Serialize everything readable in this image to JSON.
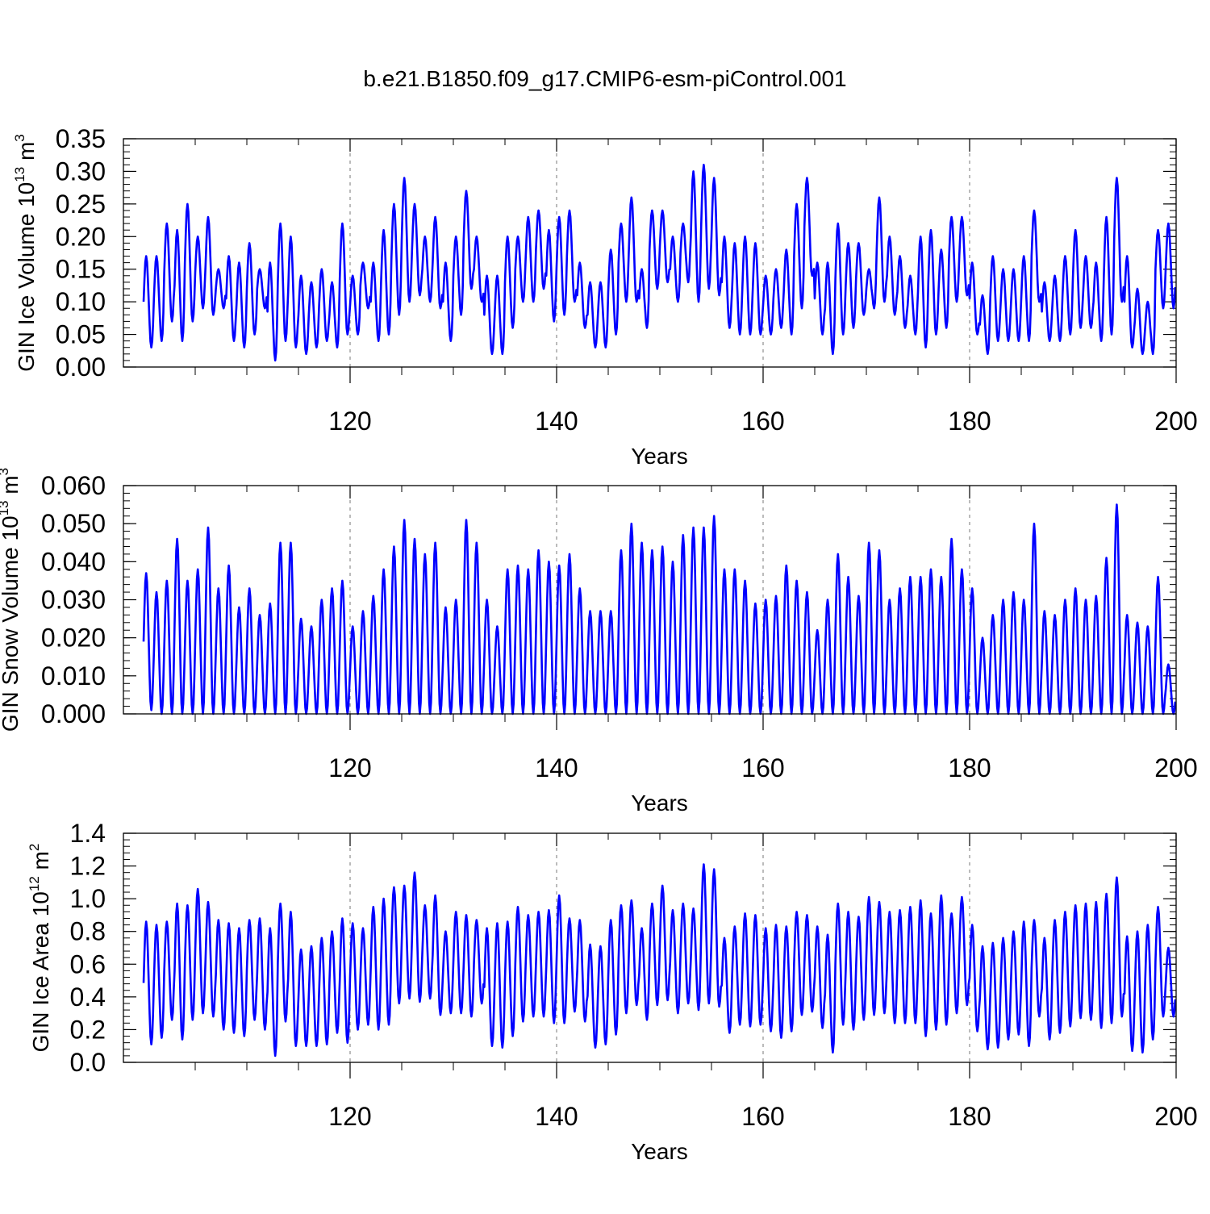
{
  "title": "b.e21.B1850.f09_g17.CMIP6-esm-piControl.001",
  "colors": {
    "series": "#0000ff",
    "axis": "#000000",
    "grid": "#777777"
  },
  "chart_data": [
    {
      "type": "line",
      "ylabel_main": "GIN Ice Volume 10",
      "ylabel_exp1": "13",
      "ylabel_mid": " m",
      "ylabel_exp2": "3",
      "xlabel": "Years",
      "xlim": [
        100,
        200
      ],
      "ylim": [
        0,
        0.35
      ],
      "x_ticks": [
        120,
        140,
        160,
        180,
        200
      ],
      "x_tick_labels": [
        "120",
        "140",
        "160",
        "180",
        "200"
      ],
      "y_ticks": [
        0,
        0.05,
        0.1,
        0.15,
        0.2,
        0.25,
        0.3,
        0.35
      ],
      "y_tick_labels": [
        "0.00",
        "0.05",
        "0.10",
        "0.15",
        "0.20",
        "0.25",
        "0.30",
        "0.35"
      ],
      "grid": "vertical dashed at major x ticks",
      "series": [
        {
          "x": [
            100,
            101,
            102,
            103,
            104,
            105,
            106,
            107,
            108,
            109,
            110,
            111,
            112,
            113,
            114,
            115,
            116,
            117,
            118,
            119,
            120,
            121,
            122,
            123,
            124,
            125,
            126,
            127,
            128,
            129,
            130,
            131,
            132,
            133,
            134,
            135,
            136,
            137,
            138,
            139,
            140,
            141,
            142,
            143,
            144,
            145,
            146,
            147,
            148,
            149,
            150,
            151,
            152,
            153,
            154,
            155,
            156,
            157,
            158,
            159,
            160,
            161,
            162,
            163,
            164,
            165,
            166,
            167,
            168,
            169,
            170,
            171,
            172,
            173,
            174,
            175,
            176,
            177,
            178,
            179,
            180,
            181,
            182,
            183,
            184,
            185,
            186,
            187,
            188,
            189,
            190,
            191,
            192,
            193,
            194,
            195,
            196,
            197,
            198,
            199
          ],
          "max": [
            0.17,
            0.17,
            0.22,
            0.21,
            0.25,
            0.2,
            0.23,
            0.15,
            0.17,
            0.16,
            0.19,
            0.15,
            0.16,
            0.22,
            0.2,
            0.14,
            0.13,
            0.15,
            0.13,
            0.22,
            0.14,
            0.16,
            0.16,
            0.21,
            0.25,
            0.29,
            0.25,
            0.2,
            0.23,
            0.16,
            0.2,
            0.27,
            0.2,
            0.14,
            0.14,
            0.2,
            0.2,
            0.23,
            0.24,
            0.21,
            0.23,
            0.24,
            0.16,
            0.13,
            0.13,
            0.18,
            0.22,
            0.26,
            0.15,
            0.24,
            0.24,
            0.2,
            0.22,
            0.3,
            0.31,
            0.29,
            0.2,
            0.19,
            0.2,
            0.19,
            0.14,
            0.15,
            0.18,
            0.25,
            0.29,
            0.16,
            0.16,
            0.22,
            0.19,
            0.19,
            0.15,
            0.26,
            0.2,
            0.17,
            0.14,
            0.2,
            0.21,
            0.18,
            0.23,
            0.23,
            0.16,
            0.11,
            0.17,
            0.15,
            0.15,
            0.17,
            0.24,
            0.13,
            0.14,
            0.17,
            0.21,
            0.17,
            0.16,
            0.23,
            0.29,
            0.17,
            0.12,
            0.1,
            0.21,
            0.22
          ],
          "min": [
            0.03,
            0.04,
            0.07,
            0.04,
            0.07,
            0.09,
            0.08,
            0.09,
            0.04,
            0.03,
            0.05,
            0.09,
            0.01,
            0.04,
            0.03,
            0.02,
            0.03,
            0.04,
            0.03,
            0.05,
            0.05,
            0.09,
            0.04,
            0.05,
            0.08,
            0.1,
            0.11,
            0.1,
            0.09,
            0.04,
            0.08,
            0.12,
            0.1,
            0.02,
            0.02,
            0.06,
            0.1,
            0.1,
            0.12,
            0.07,
            0.08,
            0.1,
            0.06,
            0.03,
            0.03,
            0.05,
            0.1,
            0.1,
            0.06,
            0.12,
            0.13,
            0.1,
            0.13,
            0.1,
            0.12,
            0.11,
            0.06,
            0.05,
            0.05,
            0.05,
            0.05,
            0.06,
            0.05,
            0.09,
            0.14,
            0.05,
            0.02,
            0.05,
            0.06,
            0.08,
            0.09,
            0.1,
            0.08,
            0.06,
            0.05,
            0.03,
            0.05,
            0.06,
            0.1,
            0.11,
            0.05,
            0.02,
            0.04,
            0.04,
            0.04,
            0.04,
            0.1,
            0.04,
            0.04,
            0.05,
            0.06,
            0.06,
            0.04,
            0.05,
            0.1,
            0.03,
            0.02,
            0.02,
            0.09,
            0.09
          ]
        }
      ]
    },
    {
      "type": "line",
      "ylabel_main": "GIN Snow Volume 10",
      "ylabel_exp1": "13",
      "ylabel_mid": " m",
      "ylabel_exp2": "3",
      "xlabel": "Years",
      "xlim": [
        100,
        200
      ],
      "ylim": [
        0,
        0.06
      ],
      "x_ticks": [
        120,
        140,
        160,
        180,
        200
      ],
      "x_tick_labels": [
        "120",
        "140",
        "160",
        "180",
        "200"
      ],
      "y_ticks": [
        0,
        0.01,
        0.02,
        0.03,
        0.04,
        0.05,
        0.06
      ],
      "y_tick_labels": [
        "0.000",
        "0.010",
        "0.020",
        "0.030",
        "0.040",
        "0.050",
        "0.060"
      ],
      "grid": "vertical dashed at major x ticks",
      "series": [
        {
          "x": [
            100,
            101,
            102,
            103,
            104,
            105,
            106,
            107,
            108,
            109,
            110,
            111,
            112,
            113,
            114,
            115,
            116,
            117,
            118,
            119,
            120,
            121,
            122,
            123,
            124,
            125,
            126,
            127,
            128,
            129,
            130,
            131,
            132,
            133,
            134,
            135,
            136,
            137,
            138,
            139,
            140,
            141,
            142,
            143,
            144,
            145,
            146,
            147,
            148,
            149,
            150,
            151,
            152,
            153,
            154,
            155,
            156,
            157,
            158,
            159,
            160,
            161,
            162,
            163,
            164,
            165,
            166,
            167,
            168,
            169,
            170,
            171,
            172,
            173,
            174,
            175,
            176,
            177,
            178,
            179,
            180,
            181,
            182,
            183,
            184,
            185,
            186,
            187,
            188,
            189,
            190,
            191,
            192,
            193,
            194,
            195,
            196,
            197,
            198,
            199
          ],
          "max": [
            0.037,
            0.032,
            0.035,
            0.046,
            0.035,
            0.038,
            0.049,
            0.033,
            0.039,
            0.028,
            0.033,
            0.026,
            0.029,
            0.045,
            0.045,
            0.025,
            0.023,
            0.03,
            0.033,
            0.035,
            0.023,
            0.027,
            0.031,
            0.038,
            0.044,
            0.051,
            0.046,
            0.042,
            0.045,
            0.028,
            0.03,
            0.051,
            0.045,
            0.03,
            0.023,
            0.038,
            0.039,
            0.038,
            0.043,
            0.04,
            0.039,
            0.042,
            0.033,
            0.027,
            0.027,
            0.027,
            0.043,
            0.05,
            0.045,
            0.043,
            0.044,
            0.04,
            0.047,
            0.049,
            0.049,
            0.052,
            0.038,
            0.038,
            0.035,
            0.029,
            0.03,
            0.031,
            0.039,
            0.035,
            0.032,
            0.022,
            0.03,
            0.042,
            0.036,
            0.031,
            0.045,
            0.043,
            0.03,
            0.033,
            0.036,
            0.036,
            0.038,
            0.036,
            0.046,
            0.038,
            0.033,
            0.02,
            0.026,
            0.03,
            0.032,
            0.03,
            0.05,
            0.027,
            0.026,
            0.03,
            0.033,
            0.03,
            0.031,
            0.041,
            0.055,
            0.026,
            0.024,
            0.023,
            0.036,
            0.013
          ],
          "min": [
            0.001,
            0.0,
            0.0,
            0.0,
            0.0,
            0.0,
            0.0,
            0.0,
            0.0,
            0.0,
            0.0,
            0.0,
            0.0,
            0.0,
            0.0,
            0.0,
            0.0,
            0.0,
            0.0,
            0.0,
            0.0,
            0.0,
            0.0,
            0.0,
            0.0,
            0.0,
            0.0,
            0.0,
            0.0,
            0.0,
            0.0,
            0.0,
            0.0,
            0.0,
            0.0,
            0.0,
            0.0,
            0.0,
            0.0,
            0.0,
            0.0,
            0.0,
            0.0,
            0.0,
            0.0,
            0.0,
            0.0,
            0.0,
            0.0,
            0.0,
            0.0,
            0.0,
            0.0,
            0.0,
            0.0,
            0.0,
            0.0,
            0.0,
            0.0,
            0.0,
            0.0,
            0.0,
            0.0,
            0.0,
            0.0,
            0.0,
            0.0,
            0.0,
            0.0,
            0.0,
            0.0,
            0.0,
            0.0,
            0.0,
            0.0,
            0.0,
            0.0,
            0.0,
            0.0,
            0.0,
            0.0,
            0.0,
            0.0,
            0.0,
            0.0,
            0.0,
            0.0,
            0.0,
            0.0,
            0.0,
            0.0,
            0.0,
            0.0,
            0.0,
            0.0,
            0.0,
            0.0,
            0.0,
            0.0,
            0.0
          ]
        }
      ]
    },
    {
      "type": "line",
      "ylabel_main": "GIN Ice Area 10",
      "ylabel_exp1": "12",
      "ylabel_mid": " m",
      "ylabel_exp2": "2",
      "xlabel": "Years",
      "xlim": [
        100,
        200
      ],
      "ylim": [
        0,
        1.4
      ],
      "x_ticks": [
        120,
        140,
        160,
        180,
        200
      ],
      "x_tick_labels": [
        "120",
        "140",
        "160",
        "180",
        "200"
      ],
      "y_ticks": [
        0,
        0.2,
        0.4,
        0.6,
        0.8,
        1.0,
        1.2,
        1.4
      ],
      "y_tick_labels": [
        "0.0",
        "0.2",
        "0.4",
        "0.6",
        "0.8",
        "1.0",
        "1.2",
        "1.4"
      ],
      "grid": "vertical dashed at major x ticks",
      "series": [
        {
          "x": [
            100,
            101,
            102,
            103,
            104,
            105,
            106,
            107,
            108,
            109,
            110,
            111,
            112,
            113,
            114,
            115,
            116,
            117,
            118,
            119,
            120,
            121,
            122,
            123,
            124,
            125,
            126,
            127,
            128,
            129,
            130,
            131,
            132,
            133,
            134,
            135,
            136,
            137,
            138,
            139,
            140,
            141,
            142,
            143,
            144,
            145,
            146,
            147,
            148,
            149,
            150,
            151,
            152,
            153,
            154,
            155,
            156,
            157,
            158,
            159,
            160,
            161,
            162,
            163,
            164,
            165,
            166,
            167,
            168,
            169,
            170,
            171,
            172,
            173,
            174,
            175,
            176,
            177,
            178,
            179,
            180,
            181,
            182,
            183,
            184,
            185,
            186,
            187,
            188,
            189,
            190,
            191,
            192,
            193,
            194,
            195,
            196,
            197,
            198,
            199
          ],
          "max": [
            0.86,
            0.84,
            0.86,
            0.97,
            0.96,
            1.06,
            0.98,
            0.87,
            0.85,
            0.82,
            0.87,
            0.88,
            0.82,
            0.97,
            0.92,
            0.69,
            0.71,
            0.76,
            0.8,
            0.88,
            0.85,
            0.82,
            0.95,
            1.0,
            1.07,
            1.08,
            1.16,
            0.96,
            1.02,
            0.8,
            0.92,
            0.9,
            0.87,
            0.82,
            0.85,
            0.86,
            0.95,
            0.9,
            0.92,
            0.93,
            1.02,
            0.88,
            0.87,
            0.72,
            0.71,
            0.87,
            0.96,
            0.99,
            0.82,
            0.97,
            1.08,
            0.93,
            0.97,
            0.94,
            1.21,
            1.18,
            0.76,
            0.83,
            0.91,
            0.9,
            0.82,
            0.84,
            0.83,
            0.92,
            0.9,
            0.83,
            0.78,
            0.97,
            0.92,
            0.89,
            1.01,
            0.98,
            0.92,
            0.93,
            0.95,
            0.99,
            0.91,
            1.02,
            0.91,
            1.01,
            0.84,
            0.71,
            0.73,
            0.76,
            0.8,
            0.86,
            0.87,
            0.76,
            0.87,
            0.92,
            0.96,
            0.97,
            0.98,
            1.03,
            1.13,
            0.77,
            0.8,
            0.84,
            0.95,
            0.7
          ],
          "min": [
            0.11,
            0.15,
            0.26,
            0.14,
            0.26,
            0.3,
            0.28,
            0.2,
            0.18,
            0.16,
            0.26,
            0.2,
            0.04,
            0.25,
            0.1,
            0.1,
            0.1,
            0.11,
            0.18,
            0.12,
            0.2,
            0.23,
            0.2,
            0.23,
            0.36,
            0.39,
            0.37,
            0.39,
            0.29,
            0.3,
            0.3,
            0.28,
            0.36,
            0.1,
            0.09,
            0.16,
            0.25,
            0.28,
            0.28,
            0.24,
            0.24,
            0.31,
            0.25,
            0.09,
            0.11,
            0.17,
            0.3,
            0.35,
            0.26,
            0.35,
            0.38,
            0.3,
            0.36,
            0.32,
            0.36,
            0.34,
            0.18,
            0.23,
            0.22,
            0.23,
            0.19,
            0.15,
            0.19,
            0.29,
            0.31,
            0.21,
            0.06,
            0.23,
            0.2,
            0.26,
            0.29,
            0.3,
            0.24,
            0.24,
            0.24,
            0.16,
            0.2,
            0.23,
            0.3,
            0.35,
            0.19,
            0.08,
            0.09,
            0.14,
            0.17,
            0.1,
            0.28,
            0.14,
            0.18,
            0.22,
            0.27,
            0.26,
            0.21,
            0.24,
            0.28,
            0.07,
            0.06,
            0.14,
            0.28,
            0.28
          ]
        }
      ]
    }
  ]
}
